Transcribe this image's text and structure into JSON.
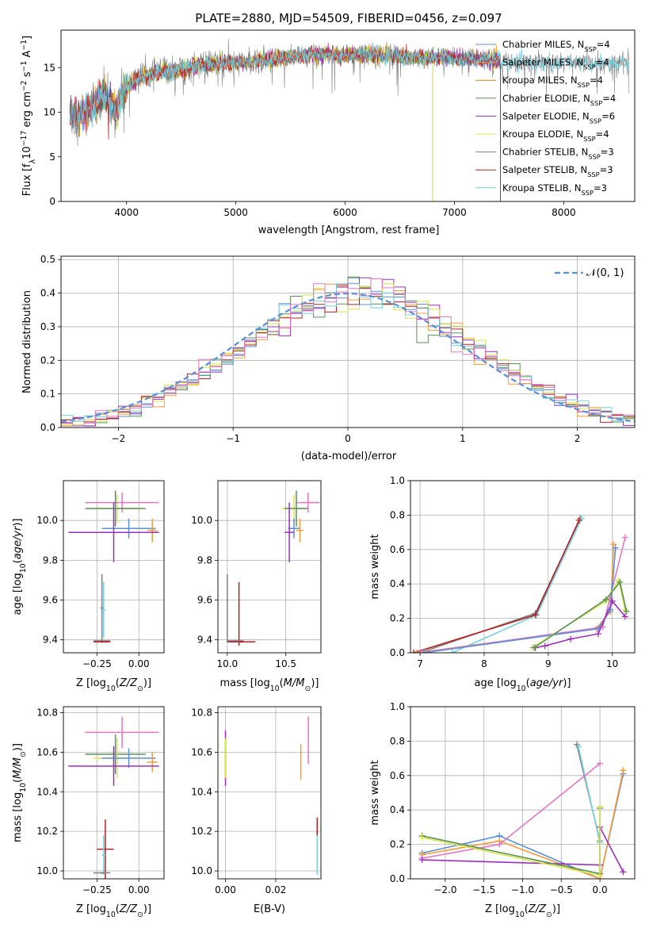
{
  "figure_title": "PLATE=2880, MJD=54509, FIBERID=0456, z=0.097",
  "colors": {
    "Chabrier MILES": "#5b8fd6",
    "Salpeter MILES": "#f39c3c",
    "Kroupa MILES": "#b8860b",
    "Chabrier ELODIE": "#5a8f5a",
    "Salpeter ELODIE": "#9b30b8",
    "Kroupa ELODIE": "#d8e64a",
    "Chabrier STELIB": "#808080",
    "Salpeter STELIB": "#b22222",
    "Kroupa STELIB": "#74d0e0",
    "pink": "#e377c2",
    "normal": "#5b8fd6"
  },
  "chart_data": [
    {
      "id": "spectrum",
      "type": "line",
      "title": "PLATE=2880, MJD=54509, FIBERID=0456, z=0.097",
      "xlabel": "wavelength [Angstrom, rest frame]",
      "ylabel": "Flux [f_λ 10^-17 erg cm^-2 s^-1 A^-1]",
      "xlim": [
        3400,
        8650
      ],
      "ylim": [
        0,
        19.2
      ],
      "xticks": [
        4000,
        5000,
        6000,
        7000,
        8000
      ],
      "yticks": [
        0,
        5,
        10,
        15
      ],
      "legend": "right",
      "series_note": "noisy observed spectrum with 9 model fits",
      "anchor_x": [
        3480,
        3600,
        3700,
        3800,
        3900,
        4000,
        4100,
        4300,
        4500,
        4700,
        4900,
        5100,
        5300,
        5500,
        5700,
        5900,
        6100,
        6300,
        6500,
        6700,
        6900,
        7100,
        7300,
        7420
      ],
      "anchor_y": [
        9.5,
        9.8,
        10.8,
        11.8,
        10.2,
        12.8,
        13.8,
        14.5,
        14.8,
        15.3,
        15.5,
        15.6,
        15.9,
        16.2,
        16.4,
        16.4,
        16.5,
        16.4,
        16.3,
        16.1,
        16.1,
        16.0,
        15.9,
        15.8
      ],
      "series": [
        {
          "name": "Chabrier MILES, N_SSP=4",
          "legend_main": "Chabrier MILES, N",
          "legend_sub": "SSP",
          "legend_tail": "=4",
          "color_key": "Chabrier MILES"
        },
        {
          "name": "Salpeter MILES, N_SSP=4",
          "legend_main": "Salpeter MILES, N",
          "legend_sub": "SSP",
          "legend_tail": "=4",
          "color_key": "Salpeter MILES"
        },
        {
          "name": "Kroupa MILES, N_SSP=4",
          "legend_main": "Kroupa MILES, N",
          "legend_sub": "SSP",
          "legend_tail": "=4",
          "color_key": "Kroupa MILES"
        },
        {
          "name": "Chabrier ELODIE, N_SSP=4",
          "legend_main": "Chabrier ELODIE, N",
          "legend_sub": "SSP",
          "legend_tail": "=4",
          "color_key": "Chabrier ELODIE"
        },
        {
          "name": "Salpeter ELODIE, N_SSP=6",
          "legend_main": "Salpeter ELODIE, N",
          "legend_sub": "SSP",
          "legend_tail": "=6",
          "color_key": "Salpeter ELODIE"
        },
        {
          "name": "Kroupa ELODIE, N_SSP=4",
          "legend_main": "Kroupa ELODIE, N",
          "legend_sub": "SSP",
          "legend_tail": "=4",
          "color_key": "Kroupa ELODIE"
        },
        {
          "name": "Chabrier STELIB, N_SSP=3",
          "legend_main": "Chabrier STELIB, N",
          "legend_sub": "SSP",
          "legend_tail": "=3",
          "color_key": "Chabrier STELIB"
        },
        {
          "name": "Salpeter STELIB, N_SSP=3",
          "legend_main": "Salpeter STELIB, N",
          "legend_sub": "SSP",
          "legend_tail": "=3",
          "color_key": "Salpeter STELIB"
        },
        {
          "name": "Kroupa STELIB, N_SSP=3",
          "legend_main": "Kroupa STELIB, N",
          "legend_sub": "SSP",
          "legend_tail": "=3",
          "color_key": "Kroupa STELIB"
        }
      ]
    },
    {
      "id": "residuals",
      "type": "histogram",
      "xlabel": "(data-model)/error",
      "ylabel": "Normed distribution",
      "xlim": [
        -2.5,
        2.5
      ],
      "ylim": [
        0,
        0.51
      ],
      "xticks": [
        -2,
        -1,
        0,
        1,
        2
      ],
      "yticks": [
        0.0,
        0.1,
        0.2,
        0.3,
        0.4,
        0.5
      ],
      "legend": "upper right",
      "normal_label": "N(0,1)",
      "bin_width": 0.1,
      "bin_start": -2.5,
      "hist_color_keys": [
        "Chabrier MILES",
        "Salpeter MILES",
        "Chabrier ELODIE",
        "Salpeter ELODIE",
        "Kroupa ELODIE",
        "Salpeter STELIB",
        "Kroupa STELIB",
        "pink"
      ],
      "grid": true
    },
    {
      "id": "age_Z",
      "type": "scatter",
      "xlabel": "Z [log10(Z/Z⊙)]",
      "ylabel": "age  [log10(age/yr)]",
      "xlim": [
        -0.45,
        0.15
      ],
      "ylim": [
        9.335,
        10.2
      ],
      "xticks": [
        -0.25,
        0.0
      ],
      "yticks": [
        9.4,
        9.6,
        9.8,
        10.0
      ],
      "points": [
        {
          "x": -0.13,
          "y": 10.06,
          "xerr": 0.14,
          "yerr": 0.07,
          "c": "Kroupa ELODIE"
        },
        {
          "x": -0.1,
          "y": 10.09,
          "xerr": 0.22,
          "yerr": 0.05,
          "c": "pink"
        },
        {
          "x": -0.14,
          "y": 10.06,
          "xerr": 0.18,
          "yerr": 0.09,
          "c": "Chabrier ELODIE"
        },
        {
          "x": -0.06,
          "y": 9.96,
          "xerr": 0.16,
          "yerr": 0.05,
          "c": "Chabrier MILES"
        },
        {
          "x": 0.08,
          "y": 9.95,
          "xerr": 0.03,
          "yerr": 0.06,
          "c": "Salpeter MILES"
        },
        {
          "x": -0.15,
          "y": 9.94,
          "xerr": 0.27,
          "yerr": 0.15,
          "c": "Salpeter ELODIE"
        },
        {
          "x": -0.22,
          "y": 9.56,
          "xerr": 0.01,
          "yerr": 0.17,
          "c": "Chabrier STELIB"
        },
        {
          "x": -0.21,
          "y": 9.55,
          "xerr": 0.01,
          "yerr": 0.14,
          "c": "Kroupa STELIB"
        },
        {
          "x": -0.22,
          "y": 9.395,
          "xerr": 0.05,
          "yerr": 0.005,
          "c": "Chabrier STELIB"
        },
        {
          "x": -0.22,
          "y": 9.39,
          "xerr": 0.05,
          "yerr": 0.005,
          "c": "Salpeter STELIB"
        }
      ]
    },
    {
      "id": "age_mass",
      "type": "scatter",
      "xlabel": "mass [log10(M/M⊙)]",
      "ylabel": "",
      "xlim": [
        9.92,
        10.8
      ],
      "ylim": [
        9.335,
        10.2
      ],
      "xticks": [
        10.0,
        10.5
      ],
      "yticks": [
        9.4,
        9.6,
        9.8,
        10.0
      ],
      "points": [
        {
          "x": 10.57,
          "y": 10.06,
          "xerr": 0.1,
          "yerr": 0.07,
          "c": "Kroupa ELODIE"
        },
        {
          "x": 10.69,
          "y": 10.09,
          "xerr": 0.1,
          "yerr": 0.05,
          "c": "pink"
        },
        {
          "x": 10.59,
          "y": 10.06,
          "xerr": 0.1,
          "yerr": 0.09,
          "c": "Chabrier ELODIE"
        },
        {
          "x": 10.57,
          "y": 9.96,
          "xerr": 0.05,
          "yerr": 0.05,
          "c": "Chabrier MILES"
        },
        {
          "x": 10.62,
          "y": 9.95,
          "xerr": 0.03,
          "yerr": 0.06,
          "c": "Salpeter MILES"
        },
        {
          "x": 10.53,
          "y": 9.94,
          "xerr": 0.04,
          "yerr": 0.15,
          "c": "Salpeter ELODIE"
        },
        {
          "x": 10.0,
          "y": 9.56,
          "xerr": 0.0,
          "yerr": 0.17,
          "c": "Chabrier STELIB"
        },
        {
          "x": 10.1,
          "y": 9.53,
          "xerr": 0.0,
          "yerr": 0.16,
          "c": "Salpeter STELIB"
        },
        {
          "x": 10.07,
          "y": 9.395,
          "xerr": 0.07,
          "yerr": 0.005,
          "c": "Chabrier STELIB"
        },
        {
          "x": 10.12,
          "y": 9.39,
          "xerr": 0.12,
          "yerr": 0.005,
          "c": "Salpeter STELIB"
        }
      ]
    },
    {
      "id": "weight_age",
      "type": "line",
      "xlabel": "age  [log10(age/yr)]",
      "ylabel": "mass weight",
      "xlim": [
        6.85,
        10.35
      ],
      "ylim": [
        0,
        1.0
      ],
      "xticks": [
        7,
        8,
        9,
        10
      ],
      "yticks": [
        0.0,
        0.2,
        0.4,
        0.6,
        0.8,
        1.0
      ],
      "series": [
        {
          "c": "Chabrier STELIB",
          "x": [
            7.0,
            8.8,
            9.5
          ],
          "y": [
            0.0,
            0.23,
            0.78
          ]
        },
        {
          "c": "Kroupa STELIB",
          "x": [
            7.5,
            8.82,
            9.52
          ],
          "y": [
            0.0,
            0.22,
            0.78
          ]
        },
        {
          "c": "Salpeter STELIB",
          "x": [
            6.9,
            8.8,
            9.48
          ],
          "y": [
            0.0,
            0.22,
            0.77
          ]
        },
        {
          "c": "Salpeter MILES",
          "x": [
            6.95,
            9.75,
            9.97,
            10.02
          ],
          "y": [
            0.0,
            0.14,
            0.24,
            0.63
          ]
        },
        {
          "c": "pink",
          "x": [
            7.0,
            9.85,
            9.95,
            10.2
          ],
          "y": [
            0.0,
            0.15,
            0.3,
            0.67
          ]
        },
        {
          "c": "Chabrier MILES",
          "x": [
            7.05,
            9.78,
            9.97,
            10.05
          ],
          "y": [
            0.0,
            0.14,
            0.25,
            0.61
          ]
        },
        {
          "c": "Salpeter ELODIE",
          "x": [
            8.8,
            8.95,
            9.35,
            9.78,
            10.0,
            10.2
          ],
          "y": [
            0.03,
            0.04,
            0.08,
            0.11,
            0.3,
            0.21
          ]
        },
        {
          "c": "Kroupa ELODIE",
          "x": [
            8.75,
            9.9,
            10.1,
            10.2
          ],
          "y": [
            0.03,
            0.3,
            0.42,
            0.25
          ]
        },
        {
          "c": "Chabrier ELODIE",
          "x": [
            8.78,
            9.9,
            10.12,
            10.22
          ],
          "y": [
            0.03,
            0.31,
            0.41,
            0.24
          ]
        }
      ]
    },
    {
      "id": "mass_Z",
      "type": "scatter",
      "xlabel": "Z [log10(Z/Z⊙)]",
      "ylabel": "mass [log10(M/M⊙)]",
      "xlim": [
        -0.45,
        0.15
      ],
      "ylim": [
        9.96,
        10.83
      ],
      "xticks": [
        -0.25,
        0.0
      ],
      "yticks": [
        10.0,
        10.2,
        10.4,
        10.6,
        10.8
      ],
      "points": [
        {
          "x": -0.1,
          "y": 10.7,
          "xerr": 0.22,
          "yerr": 0.08,
          "c": "pink"
        },
        {
          "x": -0.14,
          "y": 10.59,
          "xerr": 0.18,
          "yerr": 0.1,
          "c": "Chabrier ELODIE"
        },
        {
          "x": -0.13,
          "y": 10.57,
          "xerr": 0.14,
          "yerr": 0.1,
          "c": "Kroupa ELODIE"
        },
        {
          "x": -0.06,
          "y": 10.57,
          "xerr": 0.16,
          "yerr": 0.05,
          "c": "Chabrier MILES"
        },
        {
          "x": 0.08,
          "y": 10.55,
          "xerr": 0.03,
          "yerr": 0.05,
          "c": "Salpeter MILES"
        },
        {
          "x": -0.15,
          "y": 10.53,
          "xerr": 0.27,
          "yerr": 0.1,
          "c": "Salpeter ELODIE"
        },
        {
          "x": -0.2,
          "y": 10.11,
          "xerr": 0.05,
          "yerr": 0.15,
          "c": "Salpeter STELIB"
        },
        {
          "x": -0.21,
          "y": 10.08,
          "xerr": 0.01,
          "yerr": 0.1,
          "c": "Kroupa STELIB"
        },
        {
          "x": -0.22,
          "y": 9.99,
          "xerr": 0.05,
          "yerr": 0.005,
          "c": "Chabrier STELIB"
        }
      ]
    },
    {
      "id": "mass_ebv",
      "type": "scatter",
      "xlabel": "E(B-V)",
      "ylabel": "",
      "xlim": [
        -0.003,
        0.038
      ],
      "ylim": [
        9.96,
        10.83
      ],
      "xticks": [
        0.0,
        0.02
      ],
      "xtick_labels": [
        "0.00",
        "0.02"
      ],
      "yticks": [
        10.0,
        10.2,
        10.4,
        10.6,
        10.8
      ],
      "points": [
        {
          "x": 0.0,
          "y": 10.57,
          "xerr": 0.0,
          "yerr": 0.14,
          "c": "Salpeter ELODIE"
        },
        {
          "x": 0.0,
          "y": 10.57,
          "xerr": 0.0,
          "yerr": 0.1,
          "c": "Kroupa ELODIE"
        },
        {
          "x": 0.03,
          "y": 10.55,
          "xerr": 0.0,
          "yerr": 0.09,
          "c": "Salpeter MILES"
        },
        {
          "x": 0.033,
          "y": 10.66,
          "xerr": 0.0,
          "yerr": 0.12,
          "c": "pink"
        },
        {
          "x": 0.0365,
          "y": 10.18,
          "xerr": 0.0,
          "yerr": 0.09,
          "c": "Salpeter STELIB"
        },
        {
          "x": 0.0365,
          "y": 10.08,
          "xerr": 0.0,
          "yerr": 0.1,
          "c": "Kroupa STELIB"
        }
      ]
    },
    {
      "id": "weight_Z",
      "type": "line",
      "xlabel": "Z [log10(Z/Z⊙)]",
      "ylabel": "mass weight",
      "xlim": [
        -2.45,
        0.45
      ],
      "ylim": [
        0,
        1.0
      ],
      "xticks": [
        -2.0,
        -1.5,
        -1.0,
        -0.5,
        0.0
      ],
      "yticks": [
        0.0,
        0.2,
        0.4,
        0.6,
        0.8,
        1.0
      ],
      "series": [
        {
          "c": "Chabrier STELIB",
          "x": [
            -0.3,
            0.0
          ],
          "y": [
            0.78,
            0.22
          ]
        },
        {
          "c": "Kroupa STELIB",
          "x": [
            -0.28,
            0.0
          ],
          "y": [
            0.77,
            0.21
          ]
        },
        {
          "c": "Chabrier MILES",
          "x": [
            -2.3,
            -1.3,
            0.0,
            0.3
          ],
          "y": [
            0.15,
            0.25,
            0.0,
            0.61
          ]
        },
        {
          "c": "Salpeter MILES",
          "x": [
            -2.3,
            -1.3,
            0.0,
            0.3
          ],
          "y": [
            0.14,
            0.22,
            0.0,
            0.63
          ]
        },
        {
          "c": "pink",
          "x": [
            -2.3,
            -1.3,
            0.0
          ],
          "y": [
            0.12,
            0.2,
            0.67
          ]
        },
        {
          "c": "Salpeter ELODIE",
          "x": [
            -2.3,
            0.0,
            0.0,
            0.3
          ],
          "y": [
            0.11,
            0.08,
            0.3,
            0.04
          ]
        },
        {
          "c": "Chabrier ELODIE",
          "x": [
            -2.3,
            0.0,
            0.0
          ],
          "y": [
            0.25,
            0.03,
            0.41
          ]
        },
        {
          "c": "Kroupa ELODIE",
          "x": [
            -2.3,
            0.0,
            0.0
          ],
          "y": [
            0.24,
            0.02,
            0.42
          ]
        }
      ]
    }
  ]
}
